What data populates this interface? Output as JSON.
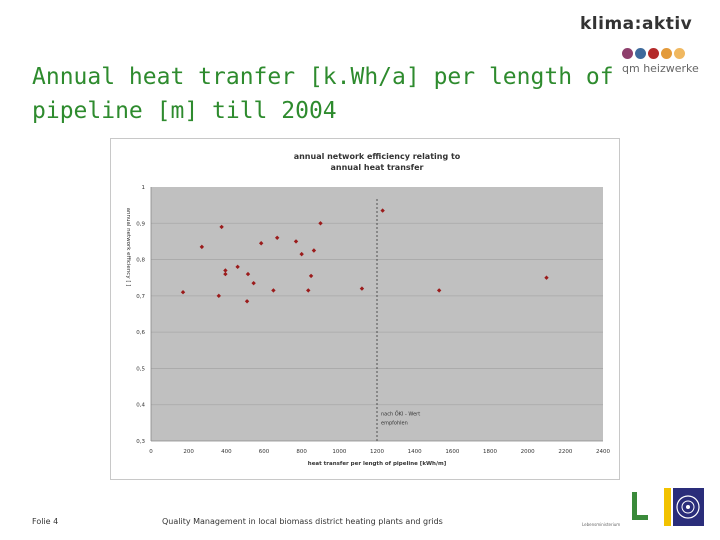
{
  "slide": {
    "title": "Annual heat tranfer [k.Wh/a] per length of pipeline [m]  till 2004",
    "footer_left": "Folie 4",
    "footer_text": "Quality Management in local biomass district heating plants and grids",
    "footer_small": "Lebensministerium"
  },
  "logo": {
    "brand": "klima:aktiv",
    "sub": "qm heizwerke",
    "dot_colors": [
      "#8e3f6c",
      "#3e6a9c",
      "#b42a2a",
      "#e39a3a",
      "#f0b860"
    ]
  },
  "colors": {
    "plot_bg": "#c0c0c0",
    "marker": "#9b1b1b",
    "title": "#2e8b2e"
  },
  "chart_data": {
    "type": "scatter",
    "title": "annual network efficiency relating to annual heat transfer",
    "title_lines": [
      "annual network efficiency relating to",
      "annual heat transfer"
    ],
    "xlabel": "heat transfer per length of pipeline  [kWh/m]",
    "ylabel": "annual network efficiency [ ]",
    "xlim": [
      0,
      2400
    ],
    "ylim": [
      0.3,
      1
    ],
    "xticks": [
      "0",
      "200",
      "400",
      "600",
      "800",
      "1000",
      "1200",
      "1400",
      "1600",
      "1800",
      "2000",
      "2200",
      "2400"
    ],
    "yticks": [
      "0,3",
      "0,4",
      "0,5",
      "0,6",
      "0,7",
      "0,8",
      "0,9",
      "1"
    ],
    "grid": true,
    "reference_line": {
      "x": 1200
    },
    "annotation_lines": [
      "nach ÖKI - Wert",
      "empfohlen"
    ],
    "points": [
      {
        "x": 170,
        "y": 0.71
      },
      {
        "x": 270,
        "y": 0.835
      },
      {
        "x": 360,
        "y": 0.7
      },
      {
        "x": 375,
        "y": 0.89
      },
      {
        "x": 395,
        "y": 0.76
      },
      {
        "x": 395,
        "y": 0.77
      },
      {
        "x": 460,
        "y": 0.78
      },
      {
        "x": 510,
        "y": 0.685
      },
      {
        "x": 515,
        "y": 0.76
      },
      {
        "x": 545,
        "y": 0.735
      },
      {
        "x": 585,
        "y": 0.845
      },
      {
        "x": 650,
        "y": 0.715
      },
      {
        "x": 670,
        "y": 0.86
      },
      {
        "x": 770,
        "y": 0.85
      },
      {
        "x": 800,
        "y": 0.815
      },
      {
        "x": 835,
        "y": 0.715
      },
      {
        "x": 850,
        "y": 0.755
      },
      {
        "x": 865,
        "y": 0.825
      },
      {
        "x": 900,
        "y": 0.9
      },
      {
        "x": 1120,
        "y": 0.72
      },
      {
        "x": 1230,
        "y": 0.935
      },
      {
        "x": 1530,
        "y": 0.715
      },
      {
        "x": 2100,
        "y": 0.75
      }
    ]
  }
}
